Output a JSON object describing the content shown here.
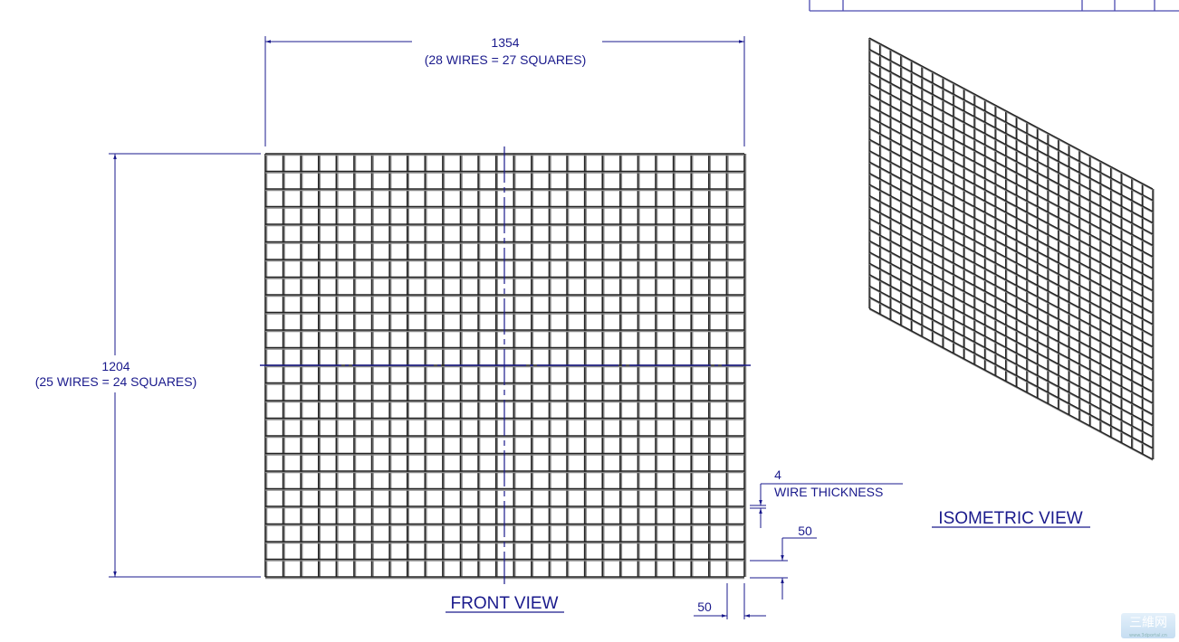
{
  "colors": {
    "dimension": "#1a1a8c",
    "wire": "#222222",
    "wire_shadow": "#8a8a8a",
    "title_block": "#4b4bb0"
  },
  "front_view": {
    "label": "FRONT VIEW",
    "wires_horizontal_count": 28,
    "wires_vertical_count": 25,
    "width_dim": {
      "value": "1354",
      "note": "(28 WIRES = 27 SQUARES)"
    },
    "height_dim": {
      "value": "1204",
      "note": "(25 WIRES = 24 SQUARES)"
    },
    "spacing_dim_bottom": "50",
    "spacing_dim_right": "50",
    "wire_thickness": {
      "value": "4",
      "label": "WIRE THICKNESS"
    }
  },
  "isometric_view": {
    "label": "ISOMETRIC VIEW"
  },
  "watermark": {
    "text": "三維网",
    "sub": "www.3dportal.cn"
  }
}
